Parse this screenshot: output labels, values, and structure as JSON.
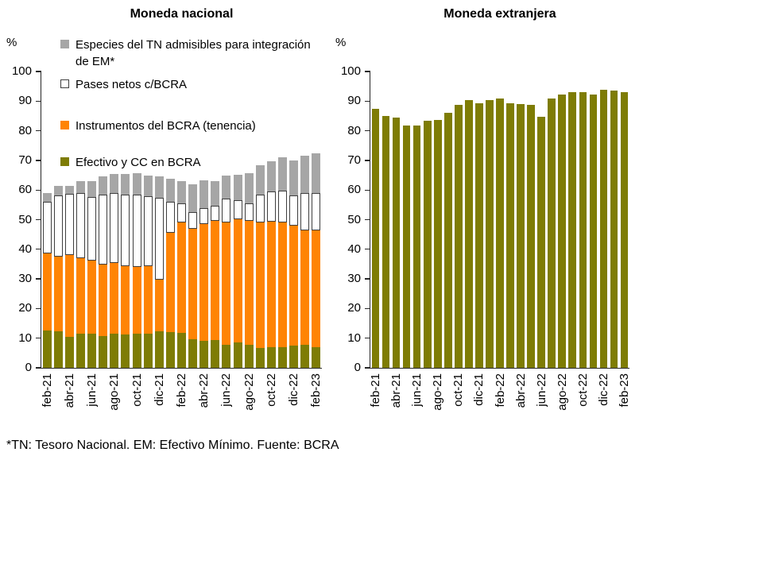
{
  "figure": {
    "footnote": "*TN: Tesoro Nacional. EM: Efectivo Mínimo. Fuente: BCRA",
    "background": "#FFFFFF",
    "axis_color": "#262626",
    "text_color": "#000000"
  },
  "chart_data": [
    {
      "type": "bar",
      "stacked": true,
      "title": "Moneda nacional",
      "ylabel": "%",
      "ylim": [
        0,
        100
      ],
      "yticks": [
        0,
        10,
        20,
        30,
        40,
        50,
        60,
        70,
        80,
        90,
        100
      ],
      "grid": false,
      "legend_position": "upper-left-inside",
      "categories": [
        "feb-21",
        "mar-21",
        "abr-21",
        "may-21",
        "jun-21",
        "jul-21",
        "ago-21",
        "sep-21",
        "oct-21",
        "nov-21",
        "dic-21",
        "ene-22",
        "feb-22",
        "mar-22",
        "abr-22",
        "may-22",
        "jun-22",
        "jul-22",
        "ago-22",
        "sep-22",
        "oct-22",
        "nov-22",
        "dic-22",
        "ene-23",
        "feb-23"
      ],
      "xtick_labels_shown": [
        "feb-21",
        "abr-21",
        "jun-21",
        "ago-21",
        "oct-21",
        "dic-21",
        "feb-22",
        "abr-22",
        "jun-22",
        "ago-22",
        "oct-22",
        "dic-22",
        "feb-23"
      ],
      "series": [
        {
          "name": "Efectivo y CC en BCRA",
          "color": "#7E7C05",
          "values": [
            12.5,
            12.2,
            10.5,
            11.6,
            11.6,
            10.7,
            11.4,
            11.3,
            11.4,
            11.6,
            12.3,
            12.1,
            11.8,
            9.7,
            9.0,
            9.5,
            7.9,
            8.7,
            7.9,
            6.6,
            7.1,
            6.9,
            7.5,
            7.9,
            7.1
          ]
        },
        {
          "name": "Instrumentos del BCRA (tenencia)",
          "color": "#FF8405",
          "values": [
            26.0,
            25.3,
            27.5,
            25.3,
            24.6,
            24.2,
            24.1,
            23.1,
            22.6,
            22.8,
            17.4,
            33.5,
            37.2,
            37.1,
            39.6,
            40.0,
            41.1,
            41.4,
            41.8,
            42.4,
            42.1,
            42.1,
            40.5,
            38.6,
            39.4
          ]
        },
        {
          "name": "Pases netos c/BCRA",
          "color": "#FFFFFF",
          "border_color": "#3F3F3F",
          "values": [
            17.5,
            20.8,
            20.7,
            22.0,
            21.5,
            23.6,
            23.5,
            24.1,
            24.5,
            23.6,
            27.7,
            10.3,
            6.5,
            5.8,
            5.3,
            5.1,
            8.0,
            6.4,
            5.7,
            9.5,
            10.3,
            10.8,
            10.2,
            12.6,
            12.5
          ]
        },
        {
          "name": "Especies del TN admisibles para integración de EM*",
          "color": "#A6A6A6",
          "values": [
            3.0,
            3.0,
            2.7,
            4.0,
            5.4,
            6.0,
            6.5,
            7.0,
            7.3,
            6.8,
            7.2,
            7.8,
            7.5,
            9.4,
            9.4,
            8.5,
            8.0,
            8.7,
            10.3,
            9.8,
            10.1,
            11.2,
            11.9,
            12.5,
            13.5
          ]
        }
      ],
      "legend": [
        {
          "label": "Especies del TN admisibles para integración de EM*",
          "color": "#A6A6A6"
        },
        {
          "label": "Pases netos c/BCRA",
          "color": "#FFFFFF",
          "border_color": "#3F3F3F"
        },
        {
          "label": "Instrumentos del BCRA (tenencia)",
          "color": "#FF8405"
        },
        {
          "label": "Efectivo y CC en BCRA",
          "color": "#7E7C05"
        }
      ]
    },
    {
      "type": "bar",
      "stacked": false,
      "title": "Moneda extranjera",
      "ylabel": "%",
      "ylim": [
        0,
        100
      ],
      "yticks": [
        0,
        10,
        20,
        30,
        40,
        50,
        60,
        70,
        80,
        90,
        100
      ],
      "grid": false,
      "categories": [
        "feb-21",
        "mar-21",
        "abr-21",
        "may-21",
        "jun-21",
        "jul-21",
        "ago-21",
        "sep-21",
        "oct-21",
        "nov-21",
        "dic-21",
        "ene-22",
        "feb-22",
        "mar-22",
        "abr-22",
        "may-22",
        "jun-22",
        "jul-22",
        "ago-22",
        "sep-22",
        "oct-22",
        "nov-22",
        "dic-22",
        "ene-23",
        "feb-23"
      ],
      "xtick_labels_shown": [
        "feb-21",
        "abr-21",
        "jun-21",
        "ago-21",
        "oct-21",
        "dic-21",
        "feb-22",
        "abr-22",
        "jun-22",
        "ago-22",
        "oct-22",
        "dic-22",
        "feb-23"
      ],
      "series": [
        {
          "name": "Moneda extranjera",
          "color": "#7E7C05",
          "values": [
            87.5,
            85.0,
            84.5,
            81.7,
            81.8,
            83.4,
            83.6,
            86.0,
            88.7,
            90.3,
            89.2,
            90.3,
            90.8,
            89.4,
            89.0,
            88.7,
            84.7,
            91.0,
            92.1,
            92.9,
            93.1,
            92.1,
            93.8,
            93.6,
            93.1
          ]
        }
      ]
    }
  ]
}
